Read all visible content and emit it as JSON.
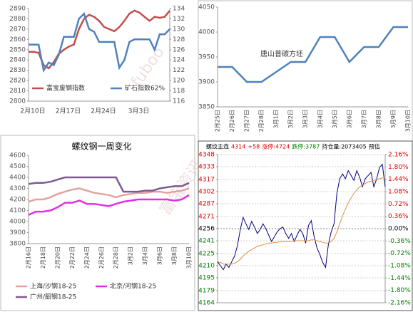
{
  "watermark": [
    "fuboo",
    "富宝资讯"
  ],
  "chart_data": [
    {
      "type": "line",
      "categories": [
        "2月10日",
        null,
        null,
        null,
        null,
        null,
        null,
        "2月17日",
        null,
        null,
        null,
        null,
        null,
        null,
        "2月24日",
        null,
        null,
        null,
        null,
        null,
        null,
        "3月3日",
        null,
        null,
        null,
        null,
        null,
        null,
        null
      ],
      "ylim": [
        2800,
        2890
      ],
      "yticks": [
        2800,
        2810,
        2820,
        2830,
        2840,
        2850,
        2860,
        2870,
        2880,
        2890
      ],
      "y2lim": [
        116,
        134
      ],
      "y2ticks": [
        116,
        118,
        120,
        122,
        124,
        126,
        128,
        130,
        132,
        134
      ],
      "grid": false,
      "legend": "bottom",
      "series": [
        {
          "name": "富宝废钢指数",
          "color": "#c0504d",
          "values": [
            2848,
            2848,
            2847,
            2835,
            2832,
            2838,
            2846,
            2850,
            2853,
            2855,
            2870,
            2880,
            2884,
            2882,
            2878,
            2872,
            2870,
            2868,
            2872,
            2878,
            2885,
            2888,
            2886,
            2882,
            2878,
            2882,
            2881,
            2882,
            2888
          ]
        },
        {
          "name": "矿石指数62%",
          "color": "#4f81bd",
          "axis": "y2",
          "values": [
            127,
            127,
            127,
            122,
            123.5,
            123,
            125,
            128.5,
            128.5,
            128.5,
            132,
            133,
            130,
            129.5,
            127.5,
            127.5,
            127.5,
            127.5,
            122.5,
            124,
            127.5,
            128,
            128,
            128,
            128,
            126,
            129,
            129,
            130
          ]
        }
      ]
    },
    {
      "type": "line",
      "annotation": "唐山普碳方坯",
      "categories": [
        "2月25日",
        "2月26日",
        "2月27日",
        "2月28日",
        "3月1日",
        "3月2日",
        "3月3日",
        "3月4日",
        "3月5日",
        "3月6日",
        "3月7日",
        "3月8日",
        "3月9日",
        "3月10日"
      ],
      "ylim": [
        3850,
        4050
      ],
      "yticks": [
        3850,
        3900,
        3950,
        4000,
        4050
      ],
      "grid": false,
      "series": [
        {
          "color": "#4f81bd",
          "values": [
            3930,
            3930,
            3900,
            3900,
            3920,
            3940,
            3940,
            3990,
            3990,
            3940,
            3970,
            3970,
            4010,
            4010
          ]
        }
      ]
    },
    {
      "type": "line",
      "title": "螺纹钢一周变化",
      "categories": [
        "2月16日",
        null,
        "2月18日",
        null,
        "2月20日",
        null,
        "2月22日",
        null,
        "2月24日",
        null,
        "2月26日",
        null,
        "2月28日",
        null,
        "3月2日",
        null,
        "3月4日",
        null,
        "3月6日",
        null,
        "3月8日",
        null,
        "3月10日"
      ],
      "ylim": [
        3800,
        4600
      ],
      "yticks": [
        3800,
        3900,
        4000,
        4100,
        4200,
        4300,
        4400,
        4500,
        4600
      ],
      "grid": false,
      "legend": "bottom",
      "series": [
        {
          "name": "上海/沙钢18-25",
          "color": "#e6a0a0",
          "values": [
            4180,
            4200,
            4200,
            4220,
            4250,
            4270,
            4290,
            4300,
            4280,
            4260,
            4250,
            4240,
            4220,
            4240,
            4250,
            4260,
            4260,
            4270,
            4270,
            4260,
            4270,
            4280,
            4300
          ]
        },
        {
          "name": "北京/河钢18-25",
          "color": "#e030e0",
          "values": [
            4060,
            4090,
            4090,
            4100,
            4130,
            4170,
            4170,
            4190,
            4160,
            4160,
            4150,
            4140,
            4160,
            4180,
            4190,
            4200,
            4200,
            4200,
            4200,
            4200,
            4190,
            4200,
            4240
          ]
        },
        {
          "name": "广州/韶钢18-25",
          "color": "#7f5a8f",
          "values": [
            4340,
            4350,
            4350,
            4360,
            4380,
            4400,
            4400,
            4400,
            4400,
            4400,
            4400,
            4400,
            4400,
            4270,
            4270,
            4270,
            4280,
            4280,
            4300,
            4310,
            4320,
            4320,
            4350
          ]
        }
      ]
    },
    {
      "type": "line",
      "header": [
        "螺纹主连",
        "4314",
        "+58",
        "涨停:4724",
        "跌停:3787",
        "持仓量:2073405",
        "预估"
      ],
      "header_colors": [
        "#000000",
        "#e00000",
        "#e00000",
        "#e00000",
        "#008000",
        "#000000",
        "#000000"
      ],
      "up_color": "#e00000",
      "down_color": "#008000",
      "grid": true,
      "ylim": [
        4164,
        4348
      ],
      "yticks": [
        4164,
        4179,
        4195,
        4210,
        4225,
        4241,
        4256,
        4271,
        4287,
        4302,
        4317,
        4333,
        4348
      ],
      "y2lim": [
        -2.16,
        2.16
      ],
      "y2ticks": [
        {
          "value": -2.16,
          "label": "-2.16%"
        },
        {
          "value": -1.8,
          "label": "-1.80%"
        },
        {
          "value": -1.44,
          "label": "-1.44%"
        },
        {
          "value": -1.08,
          "label": "-1.08%"
        },
        {
          "value": -0.72,
          "label": "-0.72%"
        },
        {
          "value": -0.36,
          "label": "-0.36%"
        },
        {
          "value": 0,
          "label": "0.00%"
        },
        {
          "value": 0.36,
          "label": "0.36%"
        },
        {
          "value": 0.72,
          "label": "0.72%"
        },
        {
          "value": 1.08,
          "label": "1.08%"
        },
        {
          "value": 1.44,
          "label": "1.44%"
        },
        {
          "value": 1.8,
          "label": "1.80%"
        },
        {
          "value": 2.16,
          "label": "2.16%"
        }
      ],
      "series": [
        {
          "color": "#000080",
          "values": [
            4215,
            4210,
            4205,
            4212,
            4208,
            4215,
            4222,
            4235,
            4255,
            4270,
            4262,
            4255,
            4265,
            4258,
            4250,
            4255,
            4262,
            4256,
            4248,
            4240,
            4246,
            4252,
            4256,
            4258,
            4250,
            4244,
            4250,
            4240,
            4248,
            4255,
            4250,
            4238,
            4260,
            4266,
            4246,
            4232,
            4224,
            4214,
            4208,
            4236,
            4252,
            4262,
            4300,
            4318,
            4324,
            4318,
            4328,
            4322,
            4316,
            4328,
            4320,
            4308,
            4318,
            4322,
            4326,
            4308,
            4318,
            4332,
            4336,
            4308
          ]
        },
        {
          "color": "#e09040",
          "values": [
            4215,
            4214,
            4212,
            4212,
            4212,
            4212,
            4213,
            4215,
            4218,
            4222,
            4225,
            4228,
            4230,
            4232,
            4234,
            4235,
            4236,
            4237,
            4238,
            4238,
            4239,
            4239,
            4240,
            4240,
            4240,
            4240,
            4240,
            4241,
            4241,
            4241,
            4241,
            4241,
            4241,
            4242,
            4242,
            4241,
            4240,
            4239,
            4238,
            4238,
            4240,
            4244,
            4252,
            4262,
            4272,
            4280,
            4288,
            4294,
            4300,
            4304,
            4308,
            4310,
            4312,
            4314,
            4315,
            4316,
            4317,
            4318,
            4319,
            4319
          ]
        }
      ]
    }
  ]
}
